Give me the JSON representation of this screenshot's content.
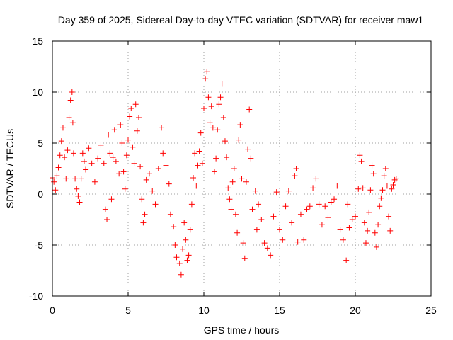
{
  "chart_data": {
    "type": "scatter",
    "title": "Day 359 of 2025, Sidereal Day-to-day VTEC variation (SDTVAR) for receiver maw1",
    "xlabel": "GPS time / hours",
    "ylabel": "SDTVAR / TECUs",
    "xlim": [
      0,
      25
    ],
    "ylim": [
      -10,
      15
    ],
    "xticks": [
      0,
      5,
      10,
      15,
      20,
      25
    ],
    "yticks": [
      -10,
      -5,
      0,
      5,
      10,
      15
    ],
    "xtick_labels": [
      "0",
      "5",
      "10",
      "15",
      "20",
      "25"
    ],
    "ytick_labels": [
      "-10",
      "-5",
      "0",
      "5",
      "10",
      "15"
    ],
    "grid": true,
    "marker": "+",
    "color": "#ff0000",
    "series": [
      {
        "name": "SDTVAR",
        "points": [
          [
            0.0,
            1.6
          ],
          [
            0.1,
            1.2
          ],
          [
            0.2,
            0.4
          ],
          [
            0.3,
            1.8
          ],
          [
            0.4,
            2.6
          ],
          [
            0.5,
            3.8
          ],
          [
            0.6,
            5.2
          ],
          [
            0.7,
            6.5
          ],
          [
            0.8,
            3.6
          ],
          [
            0.9,
            1.5
          ],
          [
            1.0,
            4.3
          ],
          [
            1.1,
            7.5
          ],
          [
            1.2,
            9.2
          ],
          [
            1.3,
            10.0
          ],
          [
            1.35,
            7.0
          ],
          [
            1.4,
            4.0
          ],
          [
            1.5,
            1.5
          ],
          [
            1.6,
            0.5
          ],
          [
            1.7,
            -0.2
          ],
          [
            1.8,
            -0.8
          ],
          [
            1.9,
            1.5
          ],
          [
            2.0,
            4.0
          ],
          [
            2.1,
            3.2
          ],
          [
            2.2,
            2.4
          ],
          [
            2.4,
            4.5
          ],
          [
            2.6,
            3.0
          ],
          [
            2.8,
            1.2
          ],
          [
            3.0,
            3.5
          ],
          [
            3.2,
            4.8
          ],
          [
            3.4,
            3.0
          ],
          [
            3.5,
            -1.5
          ],
          [
            3.6,
            -2.5
          ],
          [
            3.7,
            5.8
          ],
          [
            3.8,
            4.0
          ],
          [
            3.9,
            -0.5
          ],
          [
            4.0,
            3.6
          ],
          [
            4.1,
            6.3
          ],
          [
            4.2,
            3.2
          ],
          [
            4.4,
            2.0
          ],
          [
            4.5,
            6.8
          ],
          [
            4.6,
            5.0
          ],
          [
            4.7,
            2.2
          ],
          [
            4.8,
            0.5
          ],
          [
            4.9,
            3.8
          ],
          [
            5.0,
            5.3
          ],
          [
            5.1,
            7.6
          ],
          [
            5.2,
            8.4
          ],
          [
            5.3,
            4.6
          ],
          [
            5.4,
            3.0
          ],
          [
            5.5,
            8.8
          ],
          [
            5.6,
            6.2
          ],
          [
            5.7,
            7.5
          ],
          [
            5.8,
            2.7
          ],
          [
            5.9,
            -0.5
          ],
          [
            6.0,
            -2.8
          ],
          [
            6.1,
            -2.0
          ],
          [
            6.2,
            1.4
          ],
          [
            6.4,
            2.0
          ],
          [
            6.6,
            0.3
          ],
          [
            6.8,
            -1.0
          ],
          [
            7.0,
            2.5
          ],
          [
            7.2,
            6.5
          ],
          [
            7.3,
            4.0
          ],
          [
            7.5,
            2.8
          ],
          [
            7.7,
            1.0
          ],
          [
            7.8,
            -2.0
          ],
          [
            8.0,
            -3.2
          ],
          [
            8.1,
            -5.0
          ],
          [
            8.2,
            -6.2
          ],
          [
            8.4,
            -6.8
          ],
          [
            8.5,
            -7.9
          ],
          [
            8.6,
            -5.4
          ],
          [
            8.7,
            -2.8
          ],
          [
            8.8,
            -4.5
          ],
          [
            8.9,
            -6.5
          ],
          [
            9.0,
            -6.0
          ],
          [
            9.1,
            -3.5
          ],
          [
            9.2,
            -1.0
          ],
          [
            9.3,
            1.6
          ],
          [
            9.4,
            4.0
          ],
          [
            9.5,
            0.8
          ],
          [
            9.6,
            2.8
          ],
          [
            9.7,
            4.2
          ],
          [
            9.8,
            6.0
          ],
          [
            9.9,
            3.0
          ],
          [
            10.0,
            8.4
          ],
          [
            10.1,
            11.3
          ],
          [
            10.2,
            12.0
          ],
          [
            10.3,
            9.5
          ],
          [
            10.4,
            7.0
          ],
          [
            10.5,
            8.6
          ],
          [
            10.6,
            6.5
          ],
          [
            10.7,
            2.2
          ],
          [
            10.8,
            3.5
          ],
          [
            10.9,
            6.3
          ],
          [
            11.0,
            8.8
          ],
          [
            11.1,
            9.5
          ],
          [
            11.2,
            10.8
          ],
          [
            11.3,
            7.5
          ],
          [
            11.4,
            5.2
          ],
          [
            11.5,
            3.6
          ],
          [
            11.6,
            0.6
          ],
          [
            11.7,
            -0.5
          ],
          [
            11.8,
            -1.5
          ],
          [
            11.9,
            1.2
          ],
          [
            12.0,
            2.5
          ],
          [
            12.1,
            -2.0
          ],
          [
            12.2,
            -3.8
          ],
          [
            12.3,
            5.3
          ],
          [
            12.4,
            6.8
          ],
          [
            12.5,
            1.5
          ],
          [
            12.6,
            -4.8
          ],
          [
            12.7,
            -6.3
          ],
          [
            12.8,
            1.2
          ],
          [
            12.9,
            4.4
          ],
          [
            13.0,
            8.3
          ],
          [
            13.1,
            3.5
          ],
          [
            13.2,
            -1.5
          ],
          [
            13.4,
            0.3
          ],
          [
            13.5,
            -3.5
          ],
          [
            13.6,
            -1.0
          ],
          [
            13.8,
            -2.5
          ],
          [
            14.0,
            -4.8
          ],
          [
            14.2,
            -5.3
          ],
          [
            14.4,
            -6.0
          ],
          [
            14.6,
            -2.2
          ],
          [
            14.8,
            0.2
          ],
          [
            15.0,
            -3.5
          ],
          [
            15.2,
            -4.5
          ],
          [
            15.4,
            -1.2
          ],
          [
            15.6,
            0.3
          ],
          [
            15.8,
            -2.8
          ],
          [
            16.0,
            1.8
          ],
          [
            16.1,
            2.5
          ],
          [
            16.2,
            -4.7
          ],
          [
            16.4,
            -2.0
          ],
          [
            16.6,
            -4.5
          ],
          [
            16.8,
            -1.5
          ],
          [
            17.0,
            -1.2
          ],
          [
            17.2,
            0.6
          ],
          [
            17.4,
            1.5
          ],
          [
            17.6,
            -1.0
          ],
          [
            17.8,
            -3.0
          ],
          [
            18.0,
            -1.2
          ],
          [
            18.2,
            -2.3
          ],
          [
            18.4,
            -0.8
          ],
          [
            18.6,
            -0.5
          ],
          [
            18.8,
            0.8
          ],
          [
            19.0,
            -3.5
          ],
          [
            19.2,
            -4.5
          ],
          [
            19.4,
            -6.5
          ],
          [
            19.5,
            -1.0
          ],
          [
            19.6,
            -3.3
          ],
          [
            19.8,
            -2.5
          ],
          [
            20.0,
            -2.2
          ],
          [
            20.2,
            0.5
          ],
          [
            20.3,
            3.8
          ],
          [
            20.4,
            3.2
          ],
          [
            20.5,
            0.6
          ],
          [
            20.6,
            -2.8
          ],
          [
            20.7,
            -4.8
          ],
          [
            20.8,
            -3.6
          ],
          [
            20.9,
            -1.8
          ],
          [
            21.0,
            0.4
          ],
          [
            21.1,
            2.8
          ],
          [
            21.2,
            2.0
          ],
          [
            21.3,
            -3.8
          ],
          [
            21.4,
            -5.2
          ],
          [
            21.5,
            -3.0
          ],
          [
            21.6,
            -1.2
          ],
          [
            21.7,
            -0.4
          ],
          [
            21.8,
            0.4
          ],
          [
            21.9,
            1.8
          ],
          [
            22.0,
            2.5
          ],
          [
            22.1,
            0.8
          ],
          [
            22.2,
            -2.2
          ],
          [
            22.3,
            -3.6
          ],
          [
            22.4,
            0.5
          ],
          [
            22.5,
            0.9
          ],
          [
            22.6,
            1.4
          ],
          [
            22.7,
            1.5
          ]
        ]
      }
    ]
  }
}
